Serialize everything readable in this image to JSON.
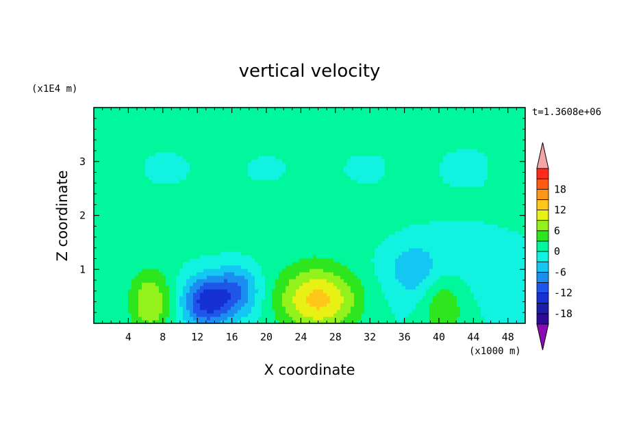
{
  "chart_data": {
    "type": "heatmap",
    "title": "vertical velocity",
    "xlabel": "X coordinate",
    "ylabel": "Z coordinate",
    "x_units": "(x1000 m)",
    "y_units": "(x1E4 m)",
    "time_label": "t=1.3608e+06",
    "xlim": [
      0,
      50
    ],
    "ylim": [
      0,
      4
    ],
    "x_ticks": [
      4,
      8,
      12,
      16,
      20,
      24,
      28,
      32,
      36,
      40,
      44,
      48
    ],
    "y_ticks": [
      1,
      2,
      3
    ],
    "colorbar": {
      "levels": [
        -21,
        -18,
        -15,
        -12,
        -9,
        -6,
        -3,
        0,
        3,
        6,
        9,
        12,
        15,
        18,
        21
      ],
      "colors": [
        "#2e0a9a",
        "#1d1da6",
        "#1530d3",
        "#1f55e8",
        "#1b8ef0",
        "#14c7f2",
        "#12f2e0",
        "#00f79b",
        "#2ee61e",
        "#93f21b",
        "#e8f014",
        "#ffc71a",
        "#ff961a",
        "#ff5a14",
        "#ff2a1a"
      ],
      "under_color": "#8a0cb3",
      "over_color": "#f4a6a6",
      "tick_labels": [
        -18,
        -12,
        -6,
        0,
        6,
        12,
        18
      ]
    },
    "features": [
      {
        "kind": "updraft",
        "x": 26,
        "z": 0.45,
        "peak": 13
      },
      {
        "kind": "updraft",
        "x": 6.5,
        "z": 0.4,
        "peak": 9
      },
      {
        "kind": "updraft",
        "x": 40.5,
        "z": 0.3,
        "peak": 6
      },
      {
        "kind": "downdraft",
        "x": 13,
        "z": 0.4,
        "peak": -13
      },
      {
        "kind": "downdraft",
        "x": 16.5,
        "z": 0.6,
        "peak": -9
      },
      {
        "kind": "downdraft",
        "x": 37,
        "z": 1.0,
        "peak": -4
      }
    ]
  }
}
